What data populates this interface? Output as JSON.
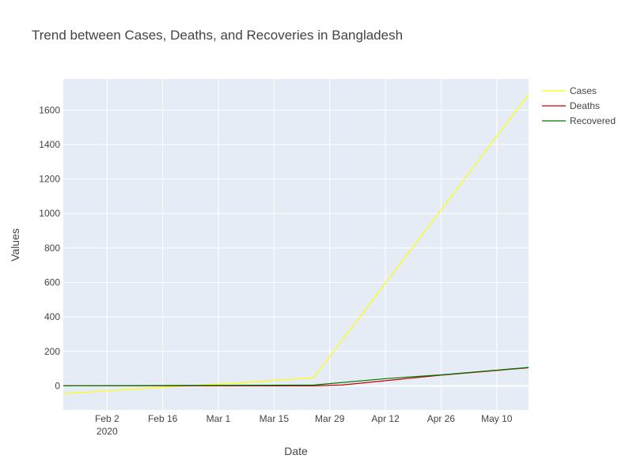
{
  "chart_data": {
    "type": "line",
    "title": "Trend between Cases, Deaths, and Recoveries in Bangladesh",
    "xlabel": "Date",
    "ylabel": "Values",
    "xlim": [
      "2020-01-22",
      "2020-05-18"
    ],
    "ylim": [
      -140,
      1780
    ],
    "x_ticks": [
      {
        "date": "2020-02-02",
        "label": "Feb 2",
        "sublabel": "2020"
      },
      {
        "date": "2020-02-16",
        "label": "Feb 16",
        "sublabel": ""
      },
      {
        "date": "2020-03-01",
        "label": "Mar 1",
        "sublabel": ""
      },
      {
        "date": "2020-03-15",
        "label": "Mar 15",
        "sublabel": ""
      },
      {
        "date": "2020-03-29",
        "label": "Mar 29",
        "sublabel": ""
      },
      {
        "date": "2020-04-12",
        "label": "Apr 12",
        "sublabel": ""
      },
      {
        "date": "2020-04-26",
        "label": "Apr 26",
        "sublabel": ""
      },
      {
        "date": "2020-05-10",
        "label": "May 10",
        "sublabel": ""
      }
    ],
    "y_ticks": [
      0,
      200,
      400,
      600,
      800,
      1000,
      1200,
      1400,
      1600
    ],
    "grid": true,
    "legend_position": "top-right",
    "series": [
      {
        "name": "Cases",
        "color": "#ffff00",
        "points": [
          {
            "x": "2020-01-22",
            "y": -45
          },
          {
            "x": "2020-02-22",
            "y": 0
          },
          {
            "x": "2020-03-08",
            "y": 20
          },
          {
            "x": "2020-03-25",
            "y": 48
          },
          {
            "x": "2020-05-18",
            "y": 1690
          }
        ]
      },
      {
        "name": "Deaths",
        "color": "#cc0000",
        "points": [
          {
            "x": "2020-01-22",
            "y": 0
          },
          {
            "x": "2020-03-25",
            "y": 0
          },
          {
            "x": "2020-04-01",
            "y": 5
          },
          {
            "x": "2020-04-26",
            "y": 62
          },
          {
            "x": "2020-05-18",
            "y": 105
          }
        ]
      },
      {
        "name": "Recovered",
        "color": "#007700",
        "points": [
          {
            "x": "2020-01-22",
            "y": 0
          },
          {
            "x": "2020-03-25",
            "y": 5
          },
          {
            "x": "2020-04-12",
            "y": 42
          },
          {
            "x": "2020-04-26",
            "y": 64
          },
          {
            "x": "2020-05-18",
            "y": 107
          }
        ]
      }
    ]
  }
}
